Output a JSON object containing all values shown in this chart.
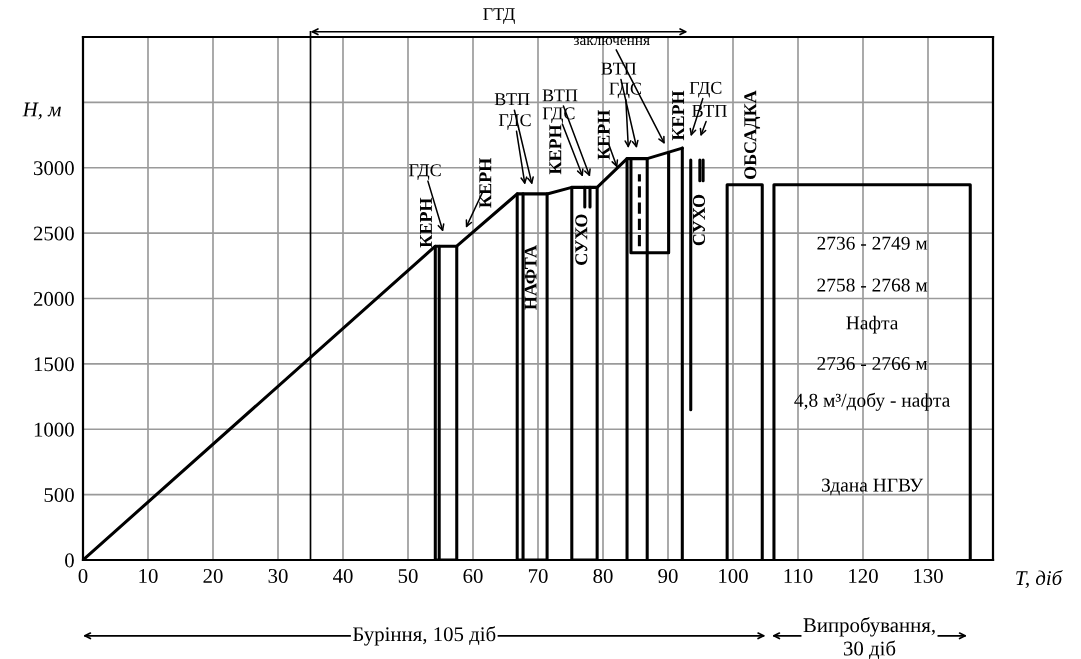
{
  "chart_data": {
    "type": "line",
    "xlabel": "T, діб",
    "ylabel": "H, м",
    "xlim": [
      0,
      140
    ],
    "ylim": [
      0,
      4000
    ],
    "xticks": [
      0,
      10,
      20,
      30,
      40,
      50,
      60,
      70,
      80,
      90,
      100,
      110,
      120,
      130
    ],
    "yticks": [
      0,
      500,
      1000,
      1500,
      2000,
      2500,
      3000,
      {
        "value": 3500,
        "label": null
      },
      {
        "value": 4000,
        "label": null
      }
    ],
    "grid": true,
    "marker": "none",
    "line_style": "solid",
    "series": [
      {
        "color": "#000000",
        "x": [
          0,
          54.2,
          57.5,
          66.8,
          71.4,
          75.2,
          79.1,
          83.7,
          86.8,
          92.2
        ],
        "values": [
          0,
          2400,
          2400,
          2800,
          2800,
          2850,
          2850,
          3070,
          3070,
          3150
        ]
      },
      {
        "color": "#000000",
        "x": [
          54.2,
          54.2,
          57.5,
          57.5
        ],
        "values": [
          2400,
          0,
          0,
          2400
        ]
      },
      {
        "color": "#000000",
        "x": [
          54.8,
          54.8
        ],
        "values": [
          0,
          2400
        ]
      },
      {
        "color": "#000000",
        "x": [
          66.8,
          66.8,
          71.4,
          71.4
        ],
        "values": [
          2800,
          0,
          0,
          2800
        ]
      },
      {
        "color": "#000000",
        "x": [
          67.7,
          67.7
        ],
        "values": [
          0,
          2800
        ]
      },
      {
        "color": "#000000",
        "x": [
          75.2,
          75.2,
          79.1,
          79.1
        ],
        "values": [
          2850,
          0,
          0,
          2850
        ]
      },
      {
        "color": "#000000",
        "x": [
          77.2,
          77.2
        ],
        "values": [
          2850,
          2700
        ]
      },
      {
        "color": "#000000",
        "x": [
          78.0,
          78.0
        ],
        "values": [
          2850,
          2700
        ]
      },
      {
        "color": "#000000",
        "x": [
          83.7,
          83.7
        ],
        "values": [
          3070,
          0
        ]
      },
      {
        "color": "#000000",
        "x": [
          86.8,
          86.8
        ],
        "values": [
          3070,
          0
        ]
      },
      {
        "color": "#000000",
        "x": [
          84.3,
          84.3,
          90.1,
          90.1
        ],
        "values": [
          3070,
          2350,
          2350,
          3110
        ]
      },
      {
        "color": "#000000",
        "x": [
          85.6,
          85.6
        ],
        "values": [
          2400,
          2950
        ],
        "line_style": "dashed"
      },
      {
        "color": "#000000",
        "x": [
          92.2,
          92.2
        ],
        "values": [
          3150,
          0
        ]
      },
      {
        "color": "#000000",
        "x": [
          93.5,
          93.5
        ],
        "values": [
          3060,
          1150
        ]
      },
      {
        "color": "#000000",
        "x": [
          94.9,
          94.9
        ],
        "values": [
          3060,
          2900
        ]
      },
      {
        "color": "#000000",
        "x": [
          95.4,
          95.4
        ],
        "values": [
          3060,
          2900
        ]
      },
      {
        "color": "#000000",
        "x": [
          99.1,
          99.1,
          104.5,
          104.5
        ],
        "values": [
          0,
          2870,
          2870,
          0
        ]
      },
      {
        "color": "#000000",
        "x": [
          106.3,
          106.3,
          136.5,
          136.5
        ],
        "values": [
          0,
          2870,
          2870,
          0
        ]
      }
    ],
    "ref_lines": [
      {
        "axis": "x",
        "value": 35,
        "color": "#000000"
      }
    ],
    "annotations": [
      "КЕРН",
      "ГДС",
      "КЕРН",
      "ВТП",
      "ГДС",
      "ВТП",
      "ГДС",
      "КЕРН",
      "НАФТА",
      "СУХО",
      "КЕРН",
      "ВТП",
      "ГДС",
      "заключення",
      "КЕРН",
      "ГДС",
      "ВТП",
      "СУХО",
      "ОБСАДКА",
      "2736 - 2749 м",
      "2758 - 2768 м",
      "Нафта",
      "2736 - 2766 м",
      "4,8 м³/добу - нафта",
      "Здана НГВУ",
      "ГТД",
      "Буріння, 105 діб",
      "Випробування,\n30 діб"
    ]
  }
}
